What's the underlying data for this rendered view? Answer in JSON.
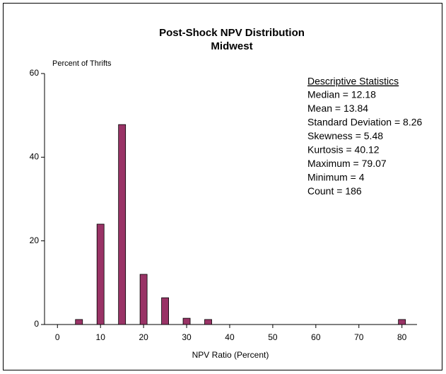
{
  "chart_data": {
    "type": "bar",
    "title": "Post-Shock NPV Distribution",
    "subtitle": "Midwest",
    "y_label": "Percent of Thrifts",
    "x_label": "NPV Ratio (Percent)",
    "x": [
      5,
      10,
      15,
      20,
      25,
      30,
      35,
      80
    ],
    "values": [
      1.2,
      24,
      47.8,
      12,
      6.4,
      1.5,
      1.2,
      1.2
    ],
    "color": "#993366",
    "xlim": [
      -3,
      83.5
    ],
    "xticks": [
      0,
      10,
      20,
      30,
      40,
      50,
      60,
      70,
      80
    ],
    "ylim": [
      0,
      60
    ],
    "yticks": [
      0,
      20,
      40,
      60
    ],
    "stats_title": "Descriptive Statistics",
    "stats": [
      "Median = 12.18",
      "Mean = 13.84",
      "Standard Deviation = 8.26",
      "Skewness = 5.48",
      "Kurtosis = 40.12",
      "Maximum = 79.07",
      "Minimum = 4",
      "Count = 186"
    ]
  }
}
